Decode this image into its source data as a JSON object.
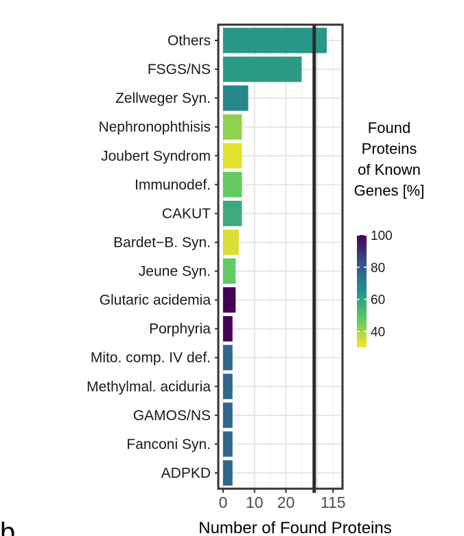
{
  "panel_label": "b",
  "chart_data": {
    "type": "bar",
    "orientation": "horizontal",
    "categories": [
      "Others",
      "FSGS/NS",
      "Zellweger Syn.",
      "Nephronophthisis",
      "Joubert Syndrom",
      "Immunodef.",
      "CAKUT",
      "Bardet−B. Syn.",
      "Jeune Syn.",
      "Glutaric acidemia",
      "Porphyria",
      "Mito. comp. IV def.",
      "Methylmal. aciduria",
      "GAMOS/NS",
      "Fanconi Syn.",
      "ADPKD"
    ],
    "values": [
      33,
      25,
      8,
      6,
      6,
      6,
      6,
      5,
      4,
      4,
      3,
      3,
      3,
      3,
      3,
      3
    ],
    "color_values": [
      63,
      62,
      68,
      42,
      33,
      47,
      57,
      34,
      47,
      100,
      100,
      77,
      77,
      77,
      77,
      77
    ],
    "xlabel": "Number of Found Proteins",
    "ylabel": "",
    "x_ticks": [
      "0",
      "10",
      "20",
      "115"
    ],
    "x_tick_values": [
      0,
      10,
      20,
      35
    ],
    "xlim": [
      0,
      38
    ],
    "axis_break_at": 29,
    "grid": true,
    "legend": {
      "title_lines": [
        "Found",
        "Proteins",
        "of Known",
        "Genes [%]"
      ],
      "ticks": [
        "100",
        "80",
        "60",
        "40"
      ],
      "tick_values": [
        100,
        80,
        60,
        40
      ],
      "range": [
        30,
        100
      ],
      "colormap": "viridis",
      "placement": "right"
    }
  }
}
